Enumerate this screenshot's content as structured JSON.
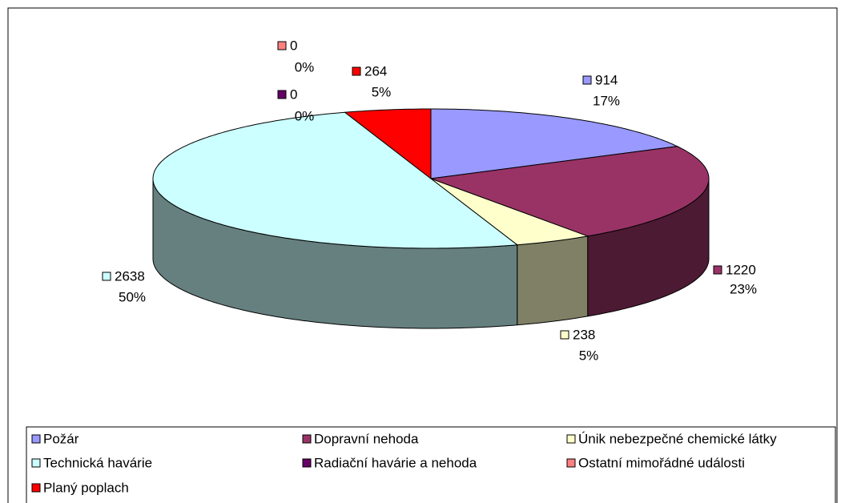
{
  "chart_data": {
    "type": "pie3d",
    "categories": [
      "Požár",
      "Dopravní nehoda",
      "Únik nebezpečné chemické látky",
      "Technická havárie",
      "Radiační havárie a nehoda",
      "Ostatní mimořádné události",
      "Planý poplach"
    ],
    "values": [
      914,
      1220,
      238,
      2638,
      0,
      0,
      264
    ],
    "percent_labels": [
      "17%",
      "23%",
      "5%",
      "50%",
      "0%",
      "0%",
      "5%"
    ],
    "colors": [
      "#9999ff",
      "#993366",
      "#ffffcc",
      "#ccffff",
      "#660066",
      "#ff8080",
      "#ff0000"
    ],
    "legend": "bottom"
  }
}
